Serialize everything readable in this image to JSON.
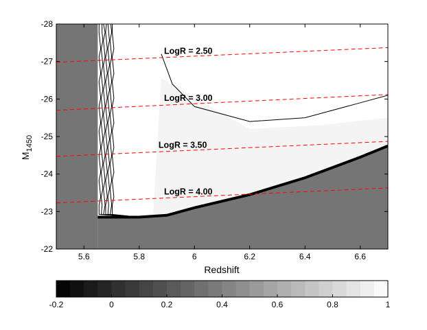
{
  "chart_data": [
    {
      "type": "heatmap",
      "title": "",
      "xlabel": "Redshift",
      "ylabel": "M",
      "ylabel_subscript": "1450",
      "xlim": [
        5.5,
        6.7
      ],
      "ylim": [
        -22,
        -28
      ],
      "y_axis_inverted": true,
      "x_ticks": [
        5.6,
        5.8,
        6.0,
        6.2,
        6.4,
        6.6
      ],
      "x_tick_labels": [
        "5.6",
        "5.8",
        "6",
        "6.2",
        "6.4",
        "6.6"
      ],
      "y_ticks": [
        -28,
        -27,
        -26,
        -25,
        -24,
        -23,
        -22
      ],
      "y_tick_labels": [
        "-28",
        "-27",
        "-26",
        "-25",
        "-24",
        "-23",
        "-22"
      ],
      "grid": false,
      "fill_outside_value": 0.35,
      "fill_inside_values": [
        0.95,
        1.0
      ],
      "completeness_boundary": {
        "low_z_edge_z": 5.65,
        "faint_limit": [
          [
            5.65,
            -22.85
          ],
          [
            5.8,
            -22.85
          ],
          [
            5.9,
            -22.9
          ],
          [
            6.0,
            -23.1
          ],
          [
            6.2,
            -23.45
          ],
          [
            6.4,
            -23.9
          ],
          [
            6.6,
            -24.45
          ],
          [
            6.7,
            -24.75
          ]
        ]
      },
      "lines": [
        {
          "label": "LogR = 2.50",
          "style": "dashed",
          "color": "#ff0000",
          "x": [
            5.5,
            6.7
          ],
          "y": [
            -26.98,
            -27.37
          ]
        },
        {
          "label": "LogR = 3.00",
          "style": "dashed",
          "color": "#ff0000",
          "x": [
            5.5,
            6.7
          ],
          "y": [
            -25.7,
            -26.12
          ]
        },
        {
          "label": "LogR = 3.50",
          "style": "dashed",
          "color": "#ff0000",
          "x": [
            5.5,
            6.7
          ],
          "y": [
            -24.47,
            -24.87
          ]
        },
        {
          "label": "LogR = 4.00",
          "style": "dashed",
          "color": "#ff0000",
          "x": [
            5.5,
            6.7
          ],
          "y": [
            -23.23,
            -23.63
          ]
        }
      ],
      "annotations": [
        {
          "text": "LogR = 2.50",
          "x": 5.89,
          "y": -27.2
        },
        {
          "text": "LogR = 3.00",
          "x": 5.89,
          "y": -25.95
        },
        {
          "text": "LogR = 3.50",
          "x": 5.87,
          "y": -24.7
        },
        {
          "text": "LogR = 4.00",
          "x": 5.89,
          "y": -23.45
        }
      ]
    },
    {
      "type": "colorbar",
      "orientation": "horizontal",
      "range": [
        -0.2,
        1.0
      ],
      "ticks": [
        -0.2,
        0.0,
        0.2,
        0.4,
        0.6,
        0.8,
        1.0
      ],
      "tick_labels": [
        "-0.2",
        "0",
        "0.2",
        "0.4",
        "0.6",
        "0.8",
        "1"
      ],
      "colormap": "gray",
      "n_levels": 24
    }
  ]
}
